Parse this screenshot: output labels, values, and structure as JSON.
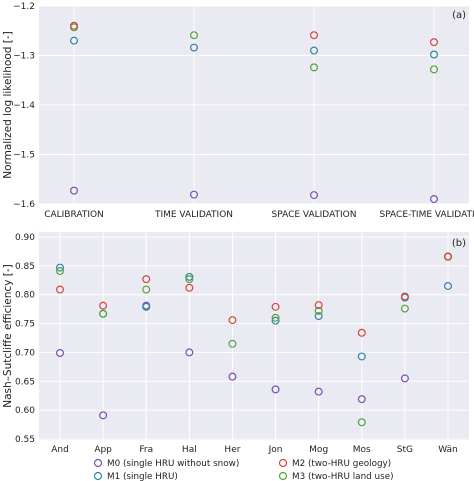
{
  "colors": {
    "M0": "#7d4fb0",
    "M1": "#2f84a5",
    "M2": "#d8433b",
    "M3": "#53a33a",
    "background": "#eaeaf2",
    "grid": "#ffffff"
  },
  "legend": {
    "entries": [
      {
        "key": "M0",
        "label": "M0 (single HRU without snow)"
      },
      {
        "key": "M2",
        "label": "M2 (two-HRU geology)"
      },
      {
        "key": "M1",
        "label": "M1 (single HRU)"
      },
      {
        "key": "M3",
        "label": "M3 (two-HRU land use)"
      }
    ]
  },
  "chart_data": [
    {
      "type": "scatter",
      "panel_label": "(a)",
      "ylabel": "Normalized log likelihood [-]",
      "xlabel": "",
      "categories": [
        "CALIBRATION",
        "TIME VALIDATION",
        "SPACE VALIDATION",
        "SPACE-TIME VALIDATION"
      ],
      "ylim": [
        -1.6,
        -1.2
      ],
      "yticks": [
        -1.6,
        -1.5,
        -1.4,
        -1.3,
        -1.2
      ],
      "ytick_labels": [
        "−1.6",
        "−1.5",
        "−1.4",
        "−1.3",
        "−1.2"
      ],
      "grid": true,
      "series": [
        {
          "key": "M0",
          "values": [
            -1.573,
            -1.581,
            -1.582,
            -1.59
          ]
        },
        {
          "key": "M1",
          "values": [
            -1.27,
            -1.284,
            -1.29,
            -1.298
          ]
        },
        {
          "key": "M2",
          "values": [
            -1.24,
            null,
            -1.259,
            -1.273
          ]
        },
        {
          "key": "M3",
          "values": [
            -1.243,
            -1.259,
            -1.324,
            -1.328
          ]
        }
      ]
    },
    {
      "type": "scatter",
      "panel_label": "(b)",
      "ylabel": "Nash–Sutcliffe efficiency [-]",
      "xlabel": "",
      "categories": [
        "And",
        "App",
        "Fra",
        "Hal",
        "Her",
        "Jon",
        "Mog",
        "Mos",
        "StG",
        "Wän"
      ],
      "ylim": [
        0.55,
        0.9
      ],
      "yticks": [
        0.55,
        0.6,
        0.65,
        0.7,
        0.75,
        0.8,
        0.85,
        0.9
      ],
      "ytick_labels": [
        "0.55",
        "0.60",
        "0.65",
        "0.70",
        "0.75",
        "0.80",
        "0.85",
        "0.90"
      ],
      "grid": true,
      "series": [
        {
          "key": "M0",
          "values": [
            0.699,
            0.591,
            0.781,
            0.7,
            0.658,
            0.636,
            0.632,
            0.619,
            0.655,
            0.866
          ]
        },
        {
          "key": "M1",
          "values": [
            0.847,
            0.767,
            0.779,
            0.831,
            null,
            0.755,
            0.763,
            0.693,
            0.795,
            0.815
          ]
        },
        {
          "key": "M2",
          "values": [
            0.809,
            0.781,
            0.827,
            0.812,
            0.756,
            0.779,
            0.782,
            0.734,
            0.797,
            0.866
          ]
        },
        {
          "key": "M3",
          "values": [
            0.841,
            0.767,
            0.809,
            0.827,
            0.715,
            0.76,
            0.772,
            0.579,
            0.776,
            0.866
          ]
        }
      ]
    }
  ]
}
